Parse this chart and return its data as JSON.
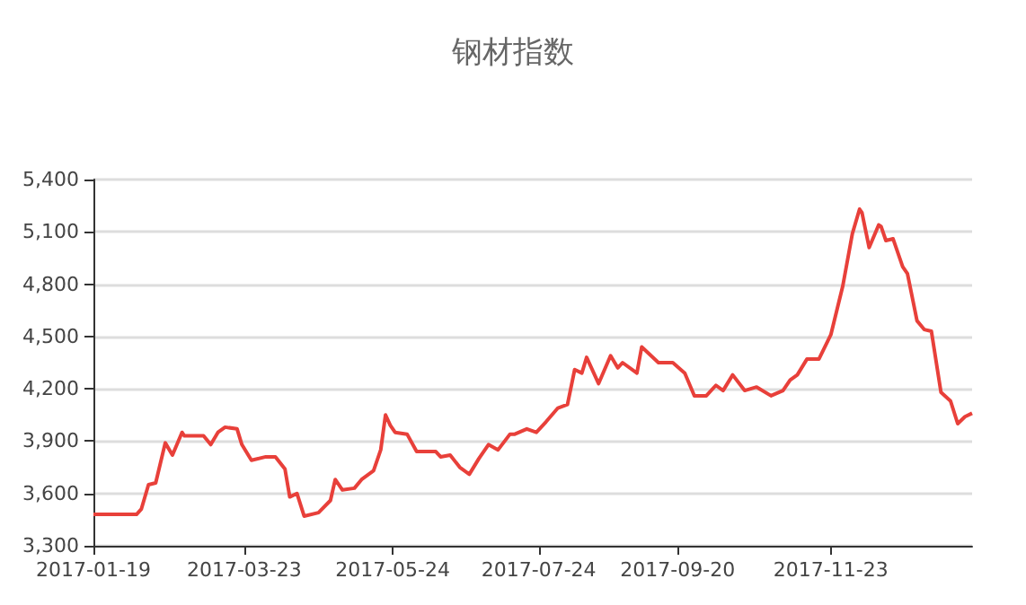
{
  "chart_data": {
    "type": "line",
    "title": "钢材指数",
    "x": [
      "2017-01-19",
      "2017-02-06",
      "2017-02-08",
      "2017-02-11",
      "2017-02-14",
      "2017-02-18",
      "2017-02-21",
      "2017-02-25",
      "2017-02-26",
      "2017-03-06",
      "2017-03-09",
      "2017-03-12",
      "2017-03-15",
      "2017-03-20",
      "2017-03-22",
      "2017-03-26",
      "2017-04-01",
      "2017-04-05",
      "2017-04-09",
      "2017-04-11",
      "2017-04-14",
      "2017-04-17",
      "2017-04-23",
      "2017-04-28",
      "2017-04-30",
      "2017-05-03",
      "2017-05-08",
      "2017-05-11",
      "2017-05-16",
      "2017-05-19",
      "2017-05-21",
      "2017-05-23",
      "2017-05-25",
      "2017-05-30",
      "2017-06-03",
      "2017-06-11",
      "2017-06-13",
      "2017-06-17",
      "2017-06-21",
      "2017-06-25",
      "2017-06-29",
      "2017-07-03",
      "2017-07-07",
      "2017-07-12",
      "2017-07-14",
      "2017-07-19",
      "2017-07-23",
      "2017-07-27",
      "2017-08-01",
      "2017-08-05",
      "2017-08-08",
      "2017-08-11",
      "2017-08-13",
      "2017-08-18",
      "2017-08-23",
      "2017-08-26",
      "2017-08-28",
      "2017-09-03",
      "2017-09-05",
      "2017-09-12",
      "2017-09-18",
      "2017-09-23",
      "2017-09-27",
      "2017-10-02",
      "2017-10-06",
      "2017-10-09",
      "2017-10-13",
      "2017-10-18",
      "2017-10-23",
      "2017-10-29",
      "2017-11-03",
      "2017-11-06",
      "2017-11-09",
      "2017-11-13",
      "2017-11-18",
      "2017-11-23",
      "2017-11-28",
      "2017-12-02",
      "2017-12-05",
      "2017-12-06",
      "2017-12-09",
      "2017-12-13",
      "2017-12-14",
      "2017-12-16",
      "2017-12-19",
      "2017-12-23",
      "2017-12-25",
      "2017-12-29",
      "2018-01-01",
      "2018-01-04",
      "2018-01-08",
      "2018-01-12",
      "2018-01-15",
      "2018-01-18",
      "2018-01-21"
    ],
    "series": [
      {
        "color": "#e8403a",
        "values": [
          3480,
          3480,
          3510,
          3650,
          3660,
          3890,
          3820,
          3950,
          3930,
          3930,
          3880,
          3950,
          3980,
          3970,
          3880,
          3790,
          3810,
          3810,
          3740,
          3580,
          3600,
          3470,
          3490,
          3560,
          3680,
          3620,
          3630,
          3680,
          3730,
          3850,
          4050,
          3990,
          3950,
          3940,
          3840,
          3840,
          3810,
          3820,
          3750,
          3710,
          3800,
          3880,
          3850,
          3940,
          3940,
          3970,
          3950,
          4010,
          4090,
          4110,
          4310,
          4290,
          4380,
          4230,
          4390,
          4320,
          4350,
          4290,
          4440,
          4350,
          4350,
          4290,
          4160,
          4160,
          4220,
          4190,
          4280,
          4190,
          4210,
          4160,
          4190,
          4250,
          4280,
          4370,
          4370,
          4510,
          4790,
          5090,
          5230,
          5210,
          5010,
          5140,
          5130,
          5050,
          5060,
          4900,
          4860,
          4590,
          4540,
          4530,
          4180,
          4130,
          4000,
          4040,
          4060
        ]
      }
    ],
    "xlim": [
      "2017-01-19",
      "2018-01-21"
    ],
    "xticks": [
      "2017-01-19",
      "2017-03-23",
      "2017-05-24",
      "2017-07-24",
      "2017-09-20",
      "2017-11-23"
    ],
    "ylim": [
      3300,
      5400
    ],
    "yticks": [
      {
        "value": 3300,
        "label": "3,300"
      },
      {
        "value": 3600,
        "label": "3,600"
      },
      {
        "value": 3900,
        "label": "3,900"
      },
      {
        "value": 4200,
        "label": "4,200"
      },
      {
        "value": 4500,
        "label": "4,500"
      },
      {
        "value": 4800,
        "label": "4,800"
      },
      {
        "value": 5100,
        "label": "5,100"
      },
      {
        "value": 5400,
        "label": "5,400"
      }
    ],
    "grid": "y",
    "line_style": "solid"
  }
}
